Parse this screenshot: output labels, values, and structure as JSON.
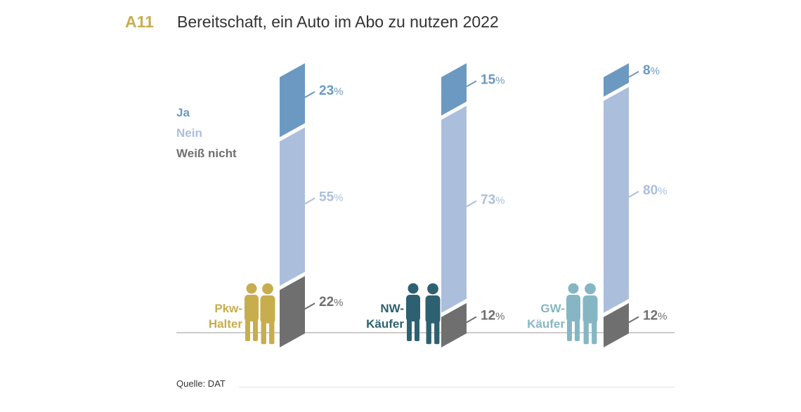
{
  "header": {
    "code": "A11",
    "title": "Bereitschaft, ein Auto im Abo zu nutzen 2022"
  },
  "footer": {
    "source": "Quelle: DAT"
  },
  "colors": {
    "ja": "#6c99c1",
    "nein": "#abbfdc",
    "weiss_nicht": "#6f6f70",
    "pkw_halter": "#c8ad4e",
    "nw_kaeufer": "#2d6171",
    "gw_kaeufer": "#86b6c3",
    "baseline": "#9a9a9a"
  },
  "chart_data": {
    "type": "bar",
    "stacked": true,
    "unit": "%",
    "categories": [
      "Pkw-Halter",
      "NW-Käufer",
      "GW-Käufer"
    ],
    "category_labels": [
      [
        "Pkw-",
        "Halter"
      ],
      [
        "NW-",
        "Käufer"
      ],
      [
        "GW-",
        "Käufer"
      ]
    ],
    "series": [
      {
        "name": "Weiß nicht",
        "values": [
          22,
          12,
          12
        ],
        "color": "#6f6f70"
      },
      {
        "name": "Nein",
        "values": [
          55,
          73,
          80
        ],
        "color": "#abbfdc"
      },
      {
        "name": "Ja",
        "values": [
          23,
          15,
          8
        ],
        "color": "#6c99c1"
      }
    ],
    "legend": [
      "Ja",
      "Nein",
      "Weiß nicht"
    ],
    "legend_position": "top-left",
    "ylim": [
      0,
      100
    ],
    "grid": false
  }
}
